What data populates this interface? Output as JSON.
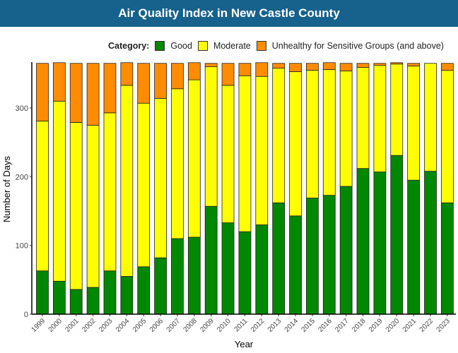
{
  "chart_data": {
    "type": "bar",
    "stacked": true,
    "title": "Air Quality Index in New Castle County",
    "xlabel": "Year",
    "ylabel": "Number of Days",
    "ylim": [
      0,
      375
    ],
    "yticks": [
      0,
      100,
      200,
      300
    ],
    "grid": false,
    "legend_title": "Category:",
    "legend_position": "top",
    "categories": [
      "1999",
      "2000",
      "2001",
      "2002",
      "2003",
      "2004",
      "2005",
      "2006",
      "2007",
      "2008",
      "2009",
      "2010",
      "2011",
      "2012",
      "2013",
      "2014",
      "2015",
      "2016",
      "2017",
      "2018",
      "2019",
      "2020",
      "2021",
      "2022",
      "2023"
    ],
    "series": [
      {
        "name": "Good",
        "color": "#008800",
        "values": [
          63,
          48,
          36,
          39,
          63,
          55,
          69,
          82,
          110,
          112,
          157,
          133,
          120,
          130,
          162,
          143,
          169,
          173,
          186,
          212,
          207,
          231,
          195,
          208,
          162
        ]
      },
      {
        "name": "Moderate",
        "color": "#ffff00",
        "values": [
          218,
          262,
          243,
          236,
          230,
          278,
          238,
          232,
          218,
          229,
          203,
          200,
          227,
          216,
          196,
          210,
          186,
          183,
          168,
          147,
          155,
          133,
          166,
          157,
          193
        ]
      },
      {
        "name": "Unhealthy for Sensitive Groups (and above)",
        "color": "#ff8c00",
        "values": [
          84,
          56,
          86,
          90,
          72,
          33,
          58,
          51,
          37,
          25,
          5,
          32,
          18,
          20,
          7,
          12,
          10,
          10,
          11,
          6,
          3,
          2,
          4,
          0,
          10
        ]
      }
    ]
  }
}
